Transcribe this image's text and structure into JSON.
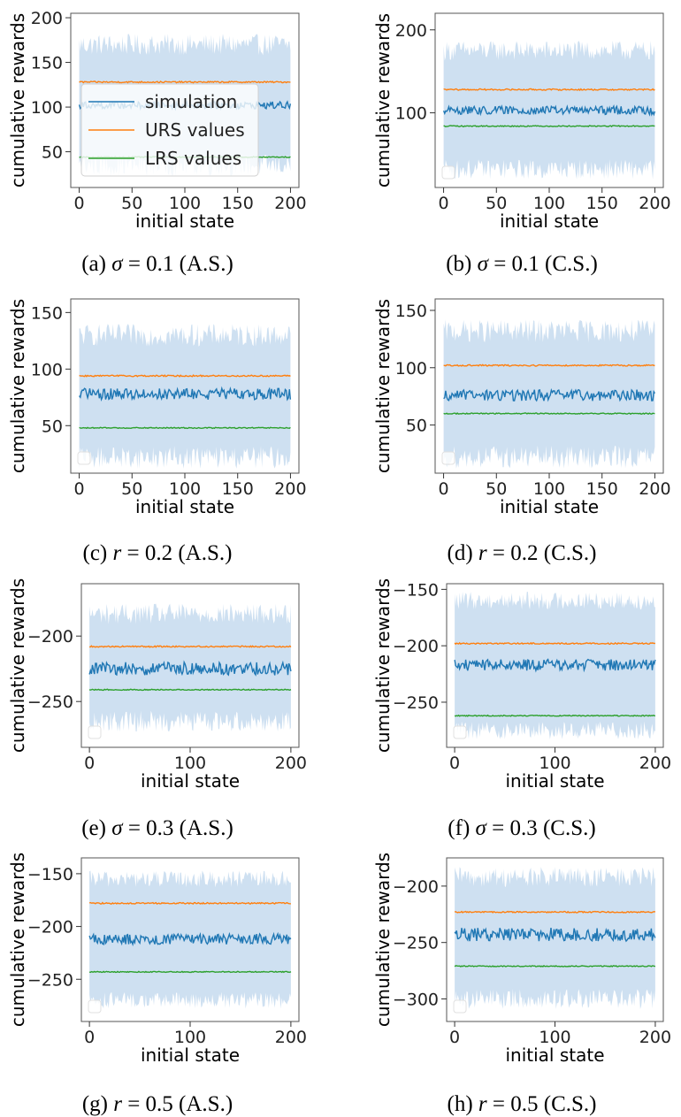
{
  "colors": {
    "simulation": "#1f77b4",
    "urs": "#ff7f0e",
    "lrs": "#2ca02c",
    "band": "#c6dbef"
  },
  "legend_labels": [
    "simulation",
    "URS values",
    "LRS values"
  ],
  "chart_data": [
    {
      "type": "line",
      "panel": "a",
      "caption": {
        "prefix": "(a) ",
        "sym": "σ",
        "rest": " = 0.1 (A.S.)"
      },
      "xlabel": "initial state",
      "ylabel": "cumulative rewards",
      "xlim": [
        -8,
        208
      ],
      "ylim": [
        10,
        205
      ],
      "xticks": [
        0,
        50,
        100,
        150,
        200
      ],
      "yticks": [
        50,
        100,
        150,
        200
      ],
      "ytick_labels": [
        "50",
        "100",
        "150",
        "200"
      ],
      "simulation_mean": 102,
      "simulation_noise": 4,
      "band": [
        35,
        170
      ],
      "band_noise": 12,
      "urs": 128,
      "lrs": 44,
      "legend_visible": true
    },
    {
      "type": "line",
      "panel": "b",
      "caption": {
        "prefix": "(b) ",
        "sym": "σ",
        "rest": " = 0.1 (C.S.)"
      },
      "xlabel": "initial state",
      "ylabel": "cumulative rewards",
      "xlim": [
        -8,
        208
      ],
      "ylim": [
        10,
        220
      ],
      "xticks": [
        0,
        50,
        100,
        150,
        200
      ],
      "yticks": [
        100,
        200
      ],
      "ytick_labels": [
        "100",
        "200"
      ],
      "simulation_mean": 103,
      "simulation_noise": 5,
      "band": [
        32,
        175
      ],
      "band_noise": 12,
      "urs": 128,
      "lrs": 84,
      "legend_visible": false
    },
    {
      "type": "line",
      "panel": "c",
      "caption": {
        "prefix": "(c) ",
        "sym": "r",
        "rest": " = 0.2 (A.S.)"
      },
      "xlabel": "initial state",
      "ylabel": "cumulative rewards",
      "xlim": [
        -8,
        208
      ],
      "ylim": [
        8,
        162
      ],
      "xticks": [
        0,
        50,
        100,
        150,
        200
      ],
      "yticks": [
        50,
        100,
        150
      ],
      "ytick_labels": [
        "50",
        "100",
        "150"
      ],
      "simulation_mean": 78,
      "simulation_noise": 5,
      "band": [
        22,
        130
      ],
      "band_noise": 10,
      "urs": 94,
      "lrs": 48,
      "legend_visible": false
    },
    {
      "type": "line",
      "panel": "d",
      "caption": {
        "prefix": "(d) ",
        "sym": "r",
        "rest": " = 0.2 (C.S.)"
      },
      "xlabel": "initial state",
      "ylabel": "cumulative rewards",
      "xlim": [
        -8,
        208
      ],
      "ylim": [
        8,
        160
      ],
      "xticks": [
        0,
        50,
        100,
        150,
        200
      ],
      "yticks": [
        50,
        100,
        150
      ],
      "ytick_labels": [
        "50",
        "100",
        "150"
      ],
      "simulation_mean": 76,
      "simulation_noise": 5,
      "band": [
        22,
        132
      ],
      "band_noise": 10,
      "urs": 102,
      "lrs": 60,
      "legend_visible": false
    },
    {
      "type": "line",
      "panel": "e",
      "caption": {
        "prefix": "(e) ",
        "sym": "σ",
        "rest": " = 0.3 (A.S.)"
      },
      "xlabel": "initial state",
      "ylabel": "cumulative rewards",
      "xlim": [
        -8,
        208
      ],
      "ylim": [
        -285,
        -160
      ],
      "xticks": [
        0,
        100,
        200
      ],
      "yticks": [
        -250,
        -200
      ],
      "ytick_labels": [
        "−250",
        "−200"
      ],
      "simulation_mean": -225,
      "simulation_noise": 5,
      "band": [
        -265,
        -183
      ],
      "band_noise": 8,
      "urs": -208,
      "lrs": -241,
      "legend_visible": false
    },
    {
      "type": "line",
      "panel": "f",
      "caption": {
        "prefix": "(f) ",
        "sym": "σ",
        "rest": " = 0.3 (C.S.)"
      },
      "xlabel": "initial state",
      "ylabel": "cumulative rewards",
      "xlim": [
        -8,
        208
      ],
      "ylim": [
        -290,
        -145
      ],
      "xticks": [
        0,
        100,
        200
      ],
      "yticks": [
        -250,
        -200,
        -150
      ],
      "ytick_labels": [
        "−250",
        "−200",
        "−150"
      ],
      "simulation_mean": -217,
      "simulation_noise": 5,
      "band": [
        -275,
        -160
      ],
      "band_noise": 8,
      "urs": -198,
      "lrs": -262,
      "legend_visible": false
    },
    {
      "type": "line",
      "panel": "g",
      "caption": {
        "prefix": "(g) ",
        "sym": "r",
        "rest": " = 0.5 (A.S.)"
      },
      "xlabel": "initial state",
      "ylabel": "cumulative rewards",
      "xlim": [
        -8,
        208
      ],
      "ylim": [
        -290,
        -135
      ],
      "xticks": [
        0,
        100,
        200
      ],
      "yticks": [
        -250,
        -200,
        -150
      ],
      "ytick_labels": [
        "−250",
        "−200",
        "−150"
      ],
      "simulation_mean": -212,
      "simulation_noise": 5,
      "band": [
        -270,
        -155
      ],
      "band_noise": 8,
      "urs": -178,
      "lrs": -243,
      "legend_visible": false
    },
    {
      "type": "line",
      "panel": "h",
      "caption": {
        "prefix": "(h) ",
        "sym": "r",
        "rest": " = 0.5 (C.S.)"
      },
      "xlabel": "initial state",
      "ylabel": "cumulative rewards",
      "xlim": [
        -8,
        208
      ],
      "ylim": [
        -320,
        -175
      ],
      "xticks": [
        0,
        100,
        200
      ],
      "yticks": [
        -300,
        -250,
        -200
      ],
      "ytick_labels": [
        "−300",
        "−250",
        "−200"
      ],
      "simulation_mean": -243,
      "simulation_noise": 6,
      "band": [
        -300,
        -192
      ],
      "band_noise": 9,
      "urs": -223,
      "lrs": -271,
      "legend_visible": false
    }
  ]
}
